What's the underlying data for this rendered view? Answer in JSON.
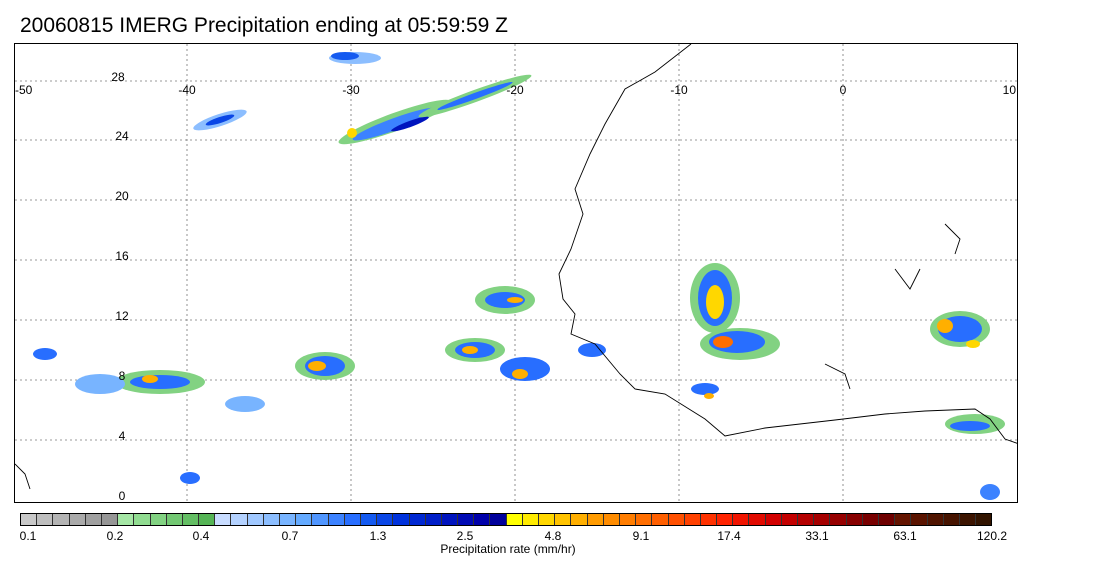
{
  "title": "20060815 IMERG Precipitation ending at 05:59:59 Z",
  "map": {
    "lon_labels": [
      "-50",
      "-40",
      "-30",
      "-20",
      "-10",
      "0",
      "10"
    ],
    "lat_labels": [
      "28",
      "24",
      "20",
      "16",
      "12",
      "8",
      "4",
      "0"
    ],
    "lon_range": [
      -50,
      10
    ],
    "lat_range": [
      -1,
      30
    ]
  },
  "colorbar": {
    "title": "Precipitation rate (mm/hr)",
    "tick_labels": [
      "0.1",
      "0.2",
      "0.4",
      "0.7",
      "1.3",
      "2.5",
      "4.8",
      "9.1",
      "17.4",
      "33.1",
      "63.1",
      "120.2"
    ],
    "colors": [
      "#c8c8c8",
      "#bebebe",
      "#b4b4b4",
      "#aaaaaa",
      "#a0a0a0",
      "#969696",
      "#a5e6a5",
      "#91dc91",
      "#82d282",
      "#73c873",
      "#64be64",
      "#55b455",
      "#c8dcff",
      "#b4d2ff",
      "#a0c8ff",
      "#8cbeff",
      "#78b4ff",
      "#64aaff",
      "#5096ff",
      "#3c82ff",
      "#286eff",
      "#145af0",
      "#0a46e6",
      "#0032dc",
      "#0028d2",
      "#001ec8",
      "#0014be",
      "#000ab4",
      "#0000aa",
      "#00009b",
      "#ffff00",
      "#ffeb00",
      "#ffd700",
      "#ffc300",
      "#ffaf00",
      "#ff9b00",
      "#ff8c00",
      "#ff7d00",
      "#ff6e00",
      "#ff5f00",
      "#ff5000",
      "#ff4100",
      "#ff3200",
      "#ff2300",
      "#f01400",
      "#e10a00",
      "#d20000",
      "#c30000",
      "#b40000",
      "#a50000",
      "#960000",
      "#870000",
      "#780000",
      "#6e0000",
      "#641400",
      "#5a1400",
      "#501400",
      "#461400",
      "#3c1400",
      "#321400"
    ]
  }
}
